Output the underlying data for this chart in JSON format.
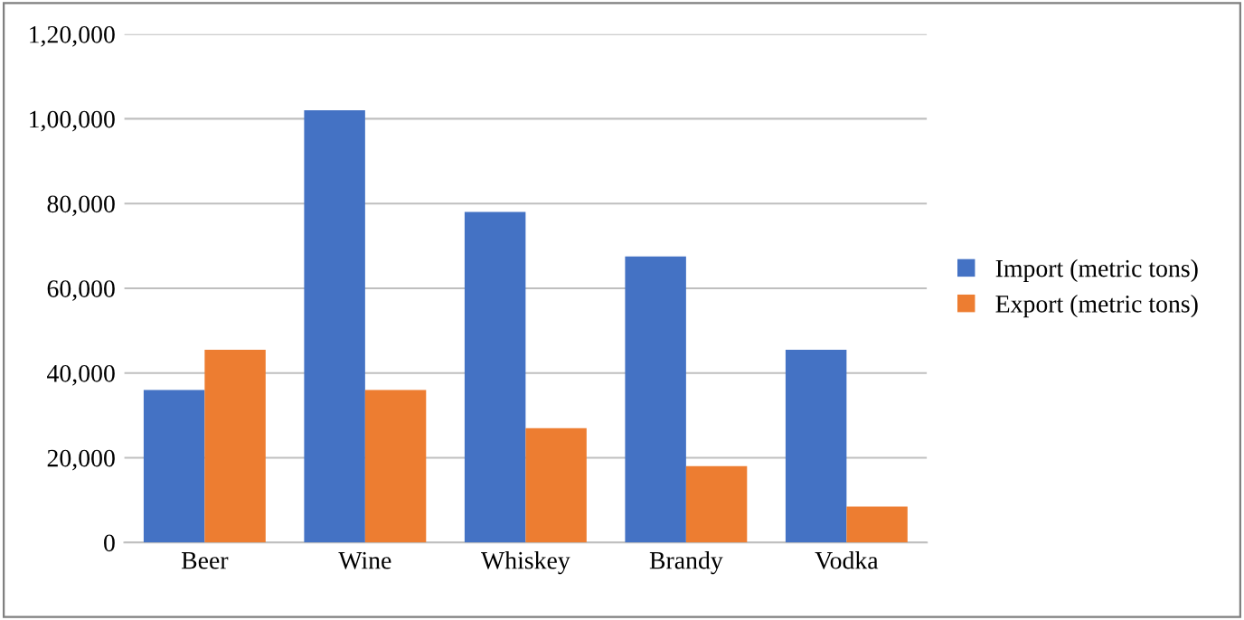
{
  "chart_data": {
    "type": "bar",
    "categories": [
      "Beer",
      "Wine",
      "Whiskey",
      "Brandy",
      "Vodka"
    ],
    "series": [
      {
        "name": "Import (metric tons)",
        "color": "#4472c4",
        "values": [
          36000,
          102000,
          78000,
          67500,
          45500
        ]
      },
      {
        "name": "Export (metric tons)",
        "color": "#ed7d31",
        "values": [
          45500,
          36000,
          27000,
          18000,
          8500
        ]
      }
    ],
    "ylim": [
      0,
      120000
    ],
    "yticks": [
      0,
      {
        "value": 20000,
        "label": "20,000"
      },
      {
        "value": 40000,
        "label": "40,000"
      },
      {
        "value": 60000,
        "label": "60,000"
      },
      {
        "value": 80000,
        "label": "80,000"
      },
      {
        "value": 100000,
        "label": "1,00,000"
      },
      {
        "value": 120000,
        "label": "1,20,000"
      }
    ],
    "grid": "y",
    "legend": "right"
  }
}
